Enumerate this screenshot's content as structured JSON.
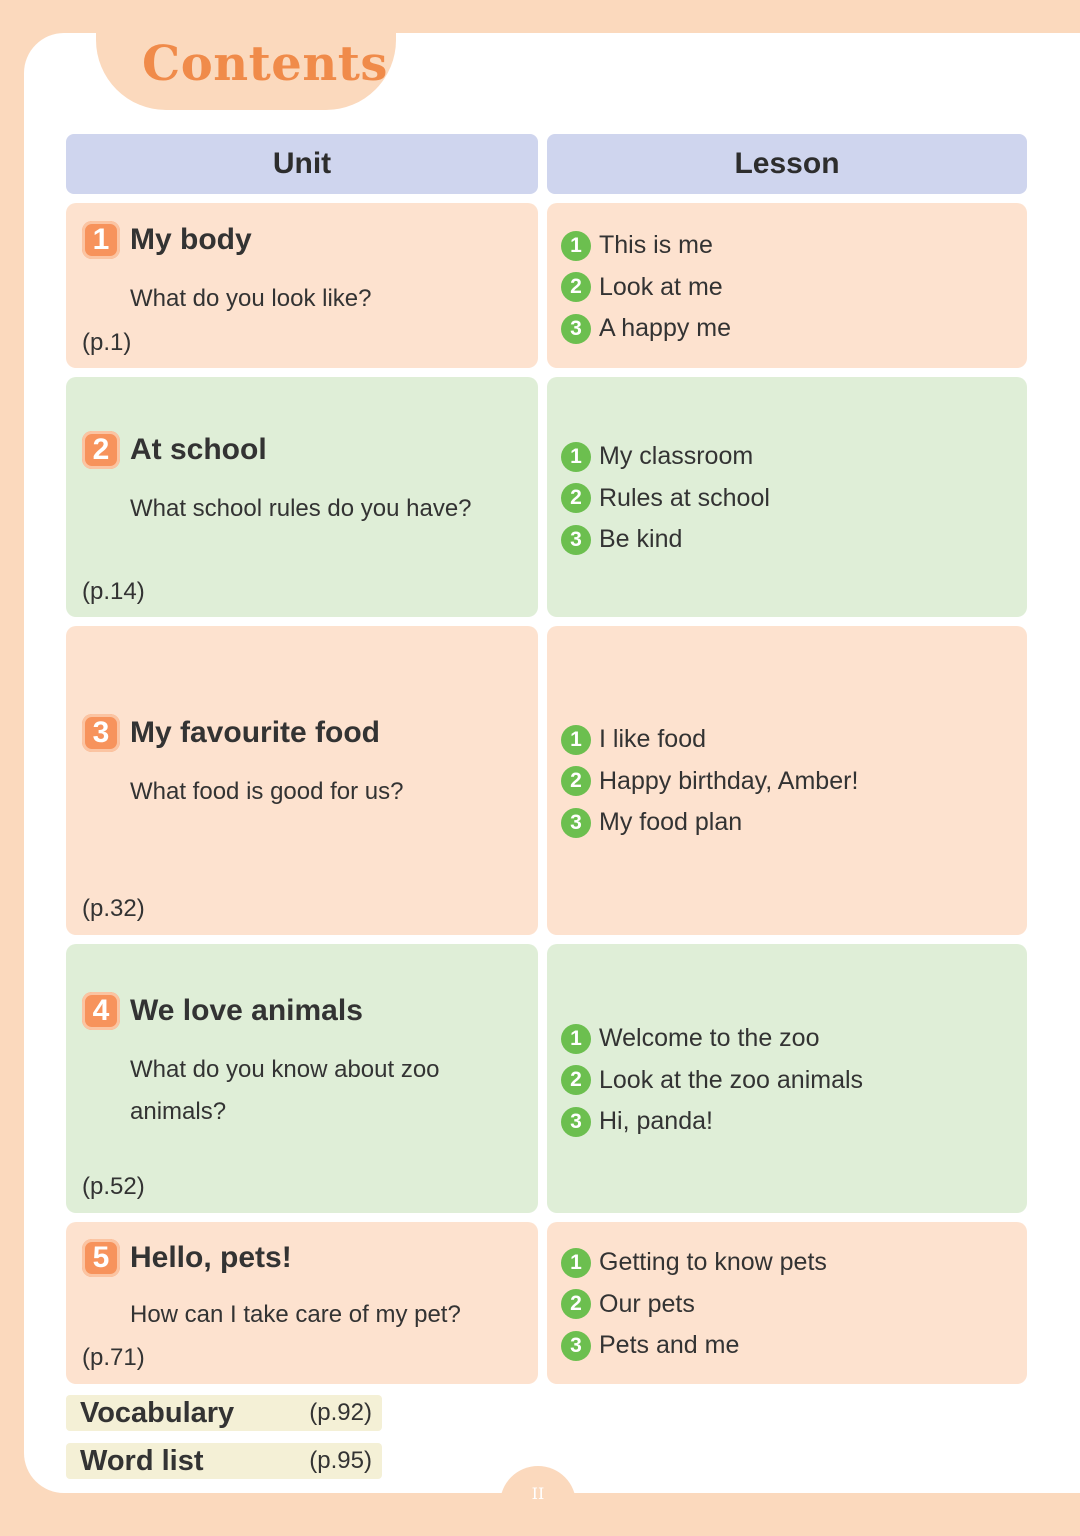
{
  "title": "Contents",
  "headers": {
    "unit": "Unit",
    "lesson": "Lesson"
  },
  "units": [
    {
      "number": "1",
      "title": "My body",
      "question": "What do you look like?",
      "page": "(p.1)",
      "lessons": [
        {
          "number": "1",
          "title": "This is me"
        },
        {
          "number": "2",
          "title": "Look at me"
        },
        {
          "number": "3",
          "title": "A happy me"
        }
      ]
    },
    {
      "number": "2",
      "title": "At school",
      "question": "What school rules do you have?",
      "page": "(p.14)",
      "lessons": [
        {
          "number": "1",
          "title": "My classroom"
        },
        {
          "number": "2",
          "title": "Rules at school"
        },
        {
          "number": "3",
          "title": "Be kind"
        }
      ]
    },
    {
      "number": "3",
      "title": "My favourite food",
      "question": "What food is good for us?",
      "page": "(p.32)",
      "lessons": [
        {
          "number": "1",
          "title": "I like food"
        },
        {
          "number": "2",
          "title": "Happy birthday, Amber!"
        },
        {
          "number": "3",
          "title": "My food plan"
        }
      ]
    },
    {
      "number": "4",
      "title": "We love animals",
      "question": "What do you know about zoo animals?",
      "page": "(p.52)",
      "lessons": [
        {
          "number": "1",
          "title": "Welcome to the zoo"
        },
        {
          "number": "2",
          "title": "Look at the zoo animals"
        },
        {
          "number": "3",
          "title": "Hi, panda!"
        }
      ]
    },
    {
      "number": "5",
      "title": "Hello, pets!",
      "question": "How can I take care of my pet?",
      "page": "(p.71)",
      "lessons": [
        {
          "number": "1",
          "title": "Getting to know pets"
        },
        {
          "number": "2",
          "title": "Our pets"
        },
        {
          "number": "3",
          "title": "Pets and me"
        }
      ]
    }
  ],
  "extras": [
    {
      "label": "Vocabulary",
      "page": "(p.92)"
    },
    {
      "label": "Word list",
      "page": "(p.95)"
    }
  ],
  "page_number": "II",
  "colors": {
    "peach": "#fde2cf",
    "green": "#dfeed7",
    "header": "#cfd5ee",
    "accent": "#f08b4a",
    "lesson_badge": "#6cbf4f"
  }
}
